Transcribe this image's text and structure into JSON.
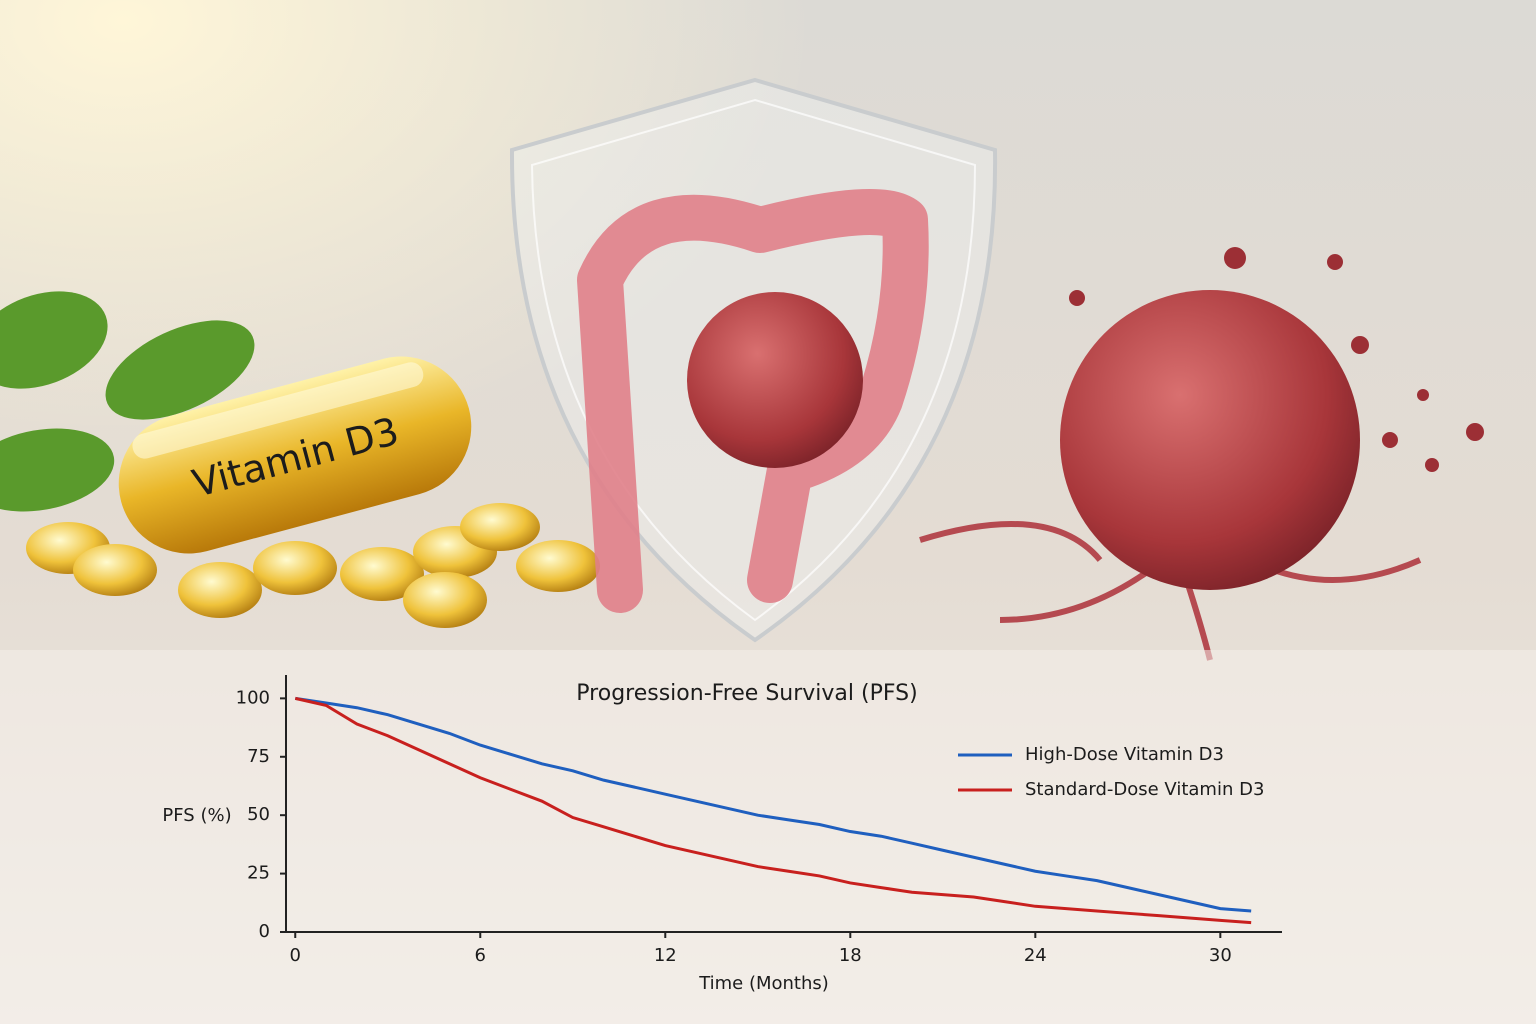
{
  "illustration": {
    "capsule_label": "Vitamin D3"
  },
  "chart_data": {
    "type": "line",
    "title": "Progression-Free Survival (PFS)",
    "x_label": "Time (Months)",
    "y_label": "PFS (%)",
    "x": [
      0,
      1,
      2,
      3,
      4,
      5,
      6,
      7,
      8,
      9,
      10,
      11,
      12,
      13,
      14,
      15,
      16,
      17,
      18,
      19,
      20,
      21,
      22,
      23,
      24,
      25,
      26,
      27,
      28,
      29,
      30,
      31
    ],
    "series": [
      {
        "name": "High-Dose Vitamin D3",
        "color": "#1f5fbf",
        "values": [
          100,
          98,
          96,
          93,
          89,
          85,
          80,
          76,
          72,
          69,
          65,
          62,
          59,
          56,
          53,
          50,
          48,
          46,
          43,
          41,
          38,
          35,
          32,
          29,
          26,
          24,
          22,
          19,
          16,
          13,
          10,
          9
        ]
      },
      {
        "name": "Standard-Dose Vitamin D3",
        "color": "#c8201e",
        "values": [
          100,
          97,
          89,
          84,
          78,
          72,
          66,
          61,
          56,
          49,
          45,
          41,
          37,
          34,
          31,
          28,
          26,
          24,
          21,
          19,
          17,
          16,
          15,
          13,
          11,
          10,
          9,
          8,
          7,
          6,
          5,
          4
        ]
      }
    ],
    "xlim": [
      -0.3,
      32
    ],
    "ylim": [
      0,
      110
    ],
    "xticks": [
      0,
      6,
      12,
      18,
      24,
      30
    ],
    "yticks": [
      0,
      25,
      50,
      75,
      100
    ],
    "legend": "right"
  }
}
